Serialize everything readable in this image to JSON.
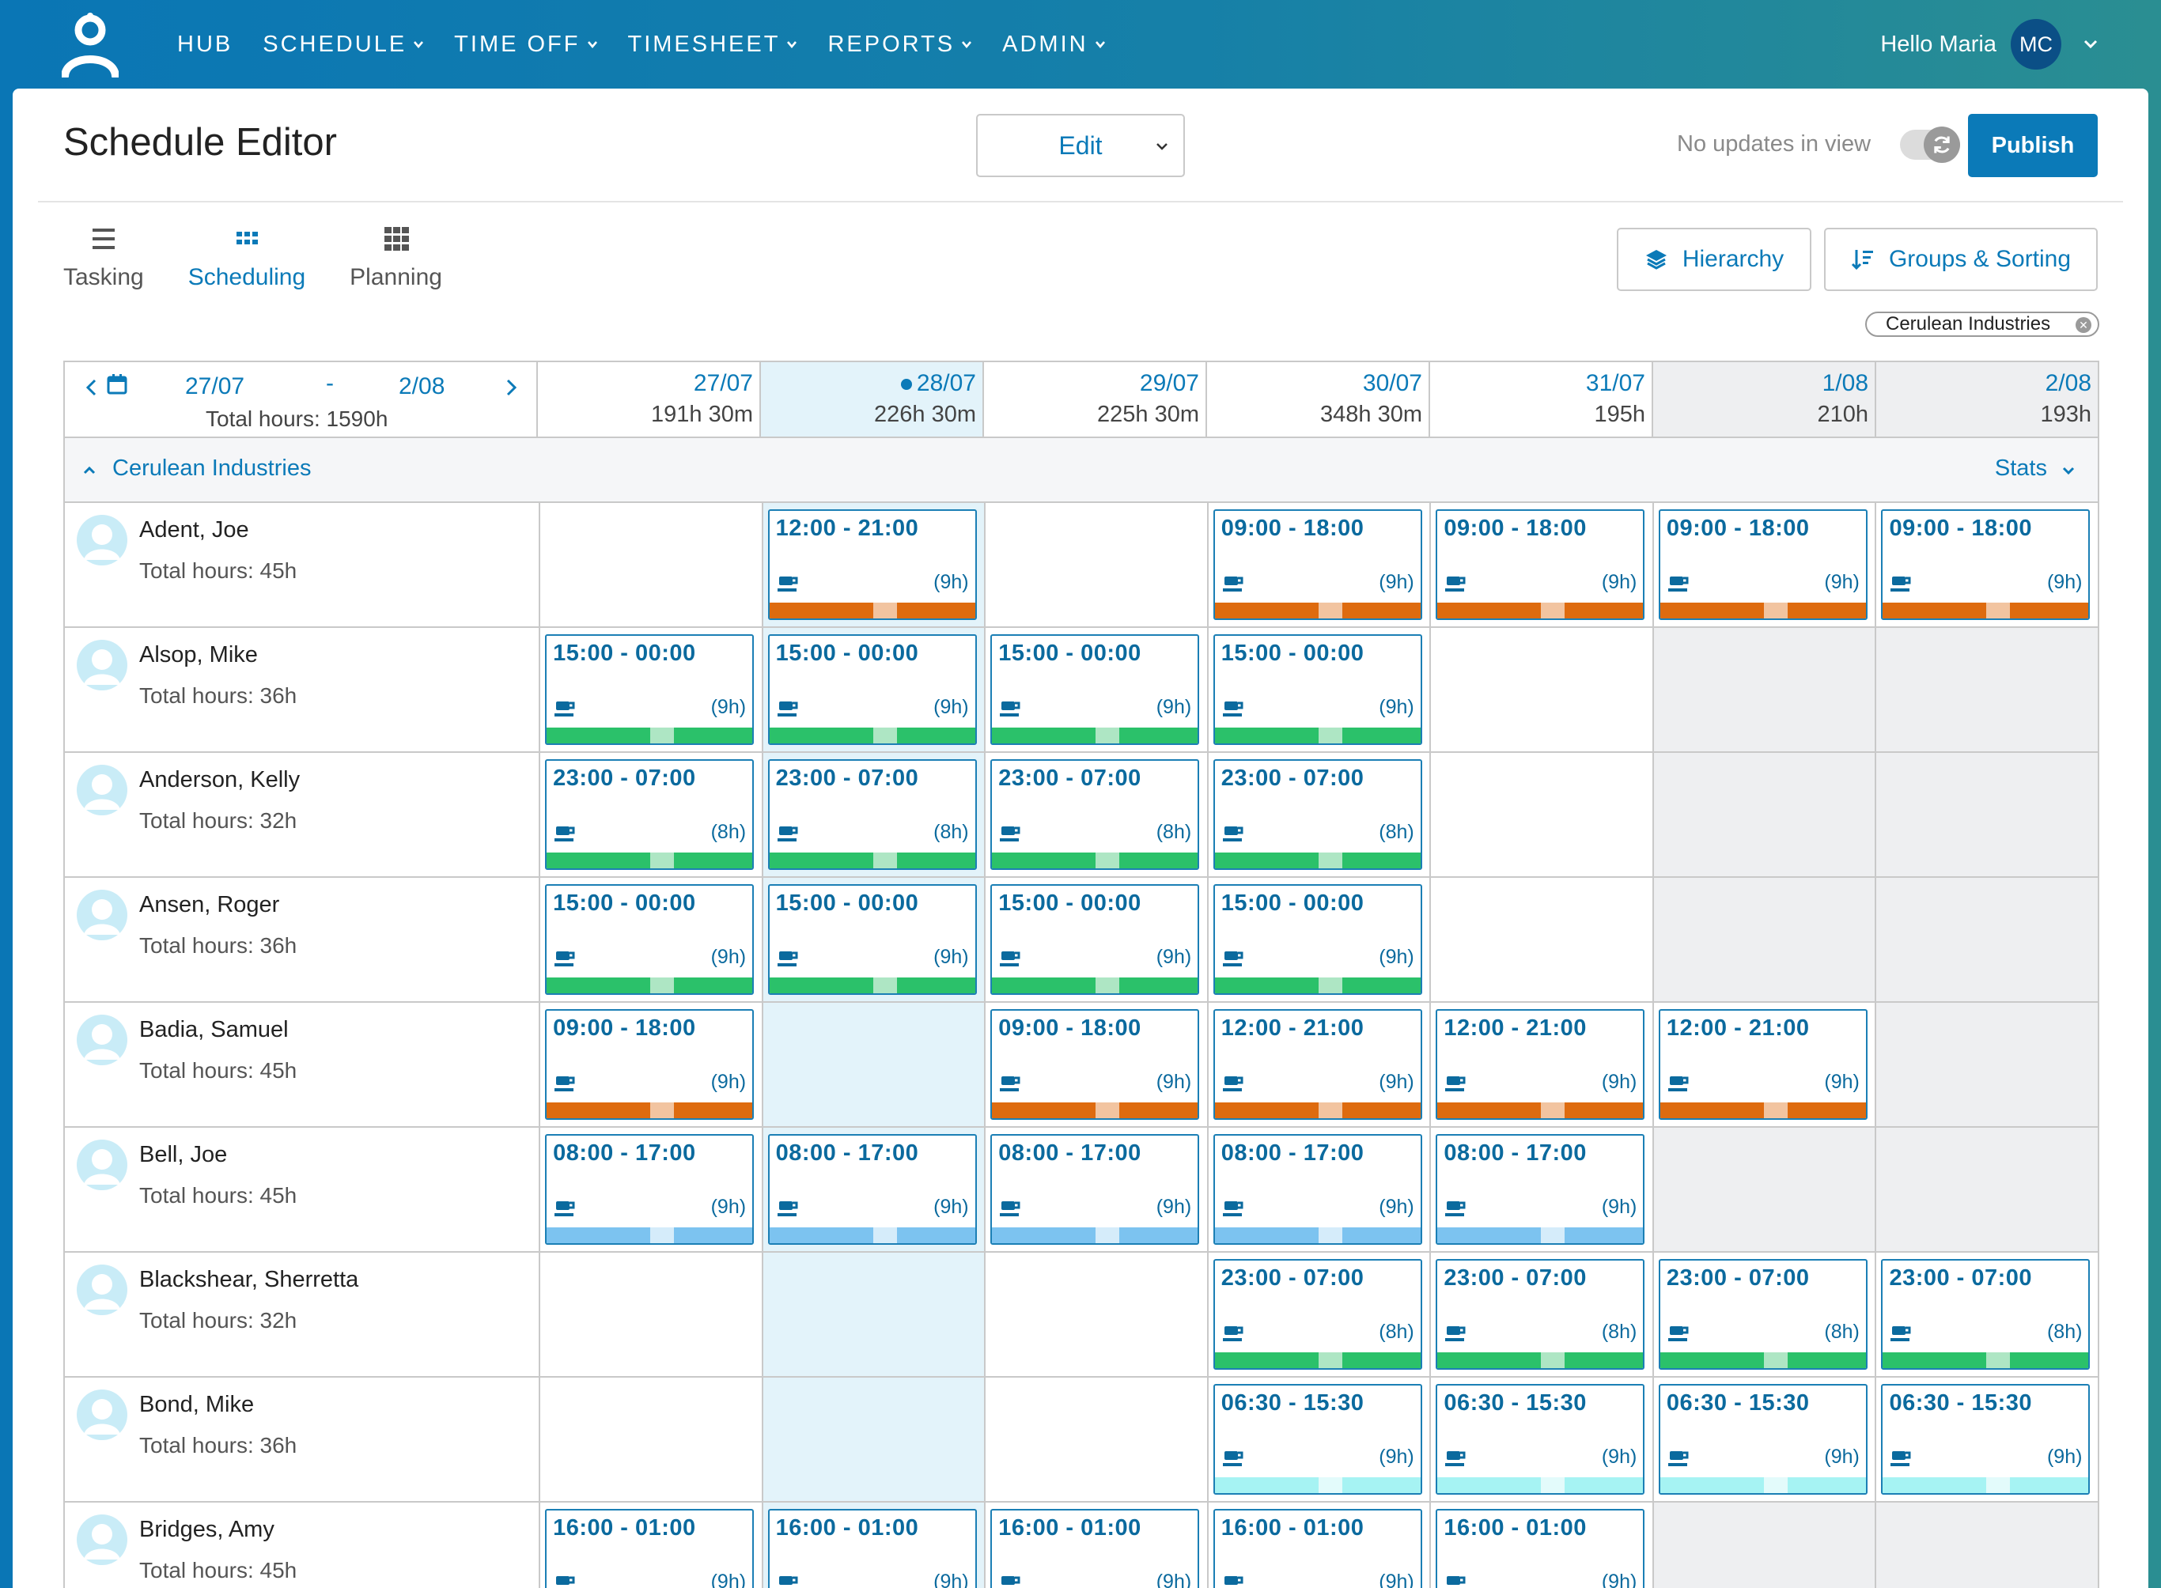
{
  "nav": {
    "items": [
      {
        "label": "HUB",
        "dropdown": false
      },
      {
        "label": "SCHEDULE",
        "dropdown": true
      },
      {
        "label": "TIME OFF",
        "dropdown": true
      },
      {
        "label": "TIMESHEET",
        "dropdown": true
      },
      {
        "label": "REPORTS",
        "dropdown": true
      },
      {
        "label": "ADMIN",
        "dropdown": true
      }
    ],
    "greeting": "Hello Maria",
    "initials": "MC"
  },
  "header": {
    "title": "Schedule Editor",
    "mode": "Edit",
    "updates_text": "No updates in view",
    "publish_label": "Publish"
  },
  "tabs": [
    {
      "label": "Tasking",
      "icon": "list-icon",
      "active": false
    },
    {
      "label": "Scheduling",
      "icon": "grid-small-icon",
      "active": true
    },
    {
      "label": "Planning",
      "icon": "grid-large-icon",
      "active": false
    }
  ],
  "tools": {
    "hierarchy_label": "Hierarchy",
    "groups_label": "Groups & Sorting",
    "filter_chip": "Cerulean Industries"
  },
  "range": {
    "from": "27/07",
    "dash": "-",
    "to": "2/08",
    "total": "Total hours: 1590h"
  },
  "days": [
    {
      "date": "27/07",
      "hours": "191h 30m",
      "today": false,
      "weekend": false
    },
    {
      "date": "28/07",
      "hours": "226h 30m",
      "today": true,
      "weekend": false
    },
    {
      "date": "29/07",
      "hours": "225h 30m",
      "today": false,
      "weekend": false
    },
    {
      "date": "30/07",
      "hours": "348h 30m",
      "today": false,
      "weekend": false
    },
    {
      "date": "31/07",
      "hours": "195h",
      "today": false,
      "weekend": false
    },
    {
      "date": "1/08",
      "hours": "210h",
      "today": false,
      "weekend": true
    },
    {
      "date": "2/08",
      "hours": "193h",
      "today": false,
      "weekend": true
    }
  ],
  "group": {
    "name": "Cerulean Industries",
    "stats_label": "Stats"
  },
  "colors": {
    "orange": "#de6b0f",
    "orange_break": "#f2c4a0",
    "green": "#2bc16a",
    "green_break": "#aee6c4",
    "blue": "#7cc3f0",
    "blue_break": "#d5ecfa",
    "cyan": "#a6f3f3",
    "cyan_break": "#e3fbfb",
    "accent": "#0b7ab8"
  },
  "employees": [
    {
      "name": "Adent, Joe",
      "total": "Total hours: 45h",
      "shifts": [
        null,
        {
          "time": "12:00 - 21:00",
          "dur": "(9h)",
          "color": "orange"
        },
        null,
        {
          "time": "09:00 - 18:00",
          "dur": "(9h)",
          "color": "orange"
        },
        {
          "time": "09:00 - 18:00",
          "dur": "(9h)",
          "color": "orange"
        },
        {
          "time": "09:00 - 18:00",
          "dur": "(9h)",
          "color": "orange"
        },
        {
          "time": "09:00 - 18:00",
          "dur": "(9h)",
          "color": "orange"
        }
      ]
    },
    {
      "name": "Alsop, Mike",
      "total": "Total hours: 36h",
      "shifts": [
        {
          "time": "15:00 - 00:00",
          "dur": "(9h)",
          "color": "green"
        },
        {
          "time": "15:00 - 00:00",
          "dur": "(9h)",
          "color": "green"
        },
        {
          "time": "15:00 - 00:00",
          "dur": "(9h)",
          "color": "green"
        },
        {
          "time": "15:00 - 00:00",
          "dur": "(9h)",
          "color": "green"
        },
        null,
        null,
        null
      ]
    },
    {
      "name": "Anderson, Kelly",
      "total": "Total hours: 32h",
      "shifts": [
        {
          "time": "23:00 - 07:00",
          "dur": "(8h)",
          "color": "green"
        },
        {
          "time": "23:00 - 07:00",
          "dur": "(8h)",
          "color": "green"
        },
        {
          "time": "23:00 - 07:00",
          "dur": "(8h)",
          "color": "green"
        },
        {
          "time": "23:00 - 07:00",
          "dur": "(8h)",
          "color": "green"
        },
        null,
        null,
        null
      ]
    },
    {
      "name": "Ansen, Roger",
      "total": "Total hours: 36h",
      "shifts": [
        {
          "time": "15:00 - 00:00",
          "dur": "(9h)",
          "color": "green"
        },
        {
          "time": "15:00 - 00:00",
          "dur": "(9h)",
          "color": "green"
        },
        {
          "time": "15:00 - 00:00",
          "dur": "(9h)",
          "color": "green"
        },
        {
          "time": "15:00 - 00:00",
          "dur": "(9h)",
          "color": "green"
        },
        null,
        null,
        null
      ]
    },
    {
      "name": "Badia, Samuel",
      "total": "Total hours: 45h",
      "shifts": [
        {
          "time": "09:00 - 18:00",
          "dur": "(9h)",
          "color": "orange"
        },
        null,
        {
          "time": "09:00 - 18:00",
          "dur": "(9h)",
          "color": "orange"
        },
        {
          "time": "12:00 - 21:00",
          "dur": "(9h)",
          "color": "orange"
        },
        {
          "time": "12:00 - 21:00",
          "dur": "(9h)",
          "color": "orange"
        },
        {
          "time": "12:00 - 21:00",
          "dur": "(9h)",
          "color": "orange"
        },
        null
      ]
    },
    {
      "name": "Bell, Joe",
      "total": "Total hours: 45h",
      "shifts": [
        {
          "time": "08:00 - 17:00",
          "dur": "(9h)",
          "color": "blue"
        },
        {
          "time": "08:00 - 17:00",
          "dur": "(9h)",
          "color": "blue"
        },
        {
          "time": "08:00 - 17:00",
          "dur": "(9h)",
          "color": "blue"
        },
        {
          "time": "08:00 - 17:00",
          "dur": "(9h)",
          "color": "blue"
        },
        {
          "time": "08:00 - 17:00",
          "dur": "(9h)",
          "color": "blue"
        },
        null,
        null
      ]
    },
    {
      "name": "Blackshear, Sherretta",
      "total": "Total hours: 32h",
      "shifts": [
        null,
        null,
        null,
        {
          "time": "23:00 - 07:00",
          "dur": "(8h)",
          "color": "green"
        },
        {
          "time": "23:00 - 07:00",
          "dur": "(8h)",
          "color": "green"
        },
        {
          "time": "23:00 - 07:00",
          "dur": "(8h)",
          "color": "green"
        },
        {
          "time": "23:00 - 07:00",
          "dur": "(8h)",
          "color": "green"
        }
      ]
    },
    {
      "name": "Bond, Mike",
      "total": "Total hours: 36h",
      "shifts": [
        null,
        null,
        null,
        {
          "time": "06:30 - 15:30",
          "dur": "(9h)",
          "color": "cyan"
        },
        {
          "time": "06:30 - 15:30",
          "dur": "(9h)",
          "color": "cyan"
        },
        {
          "time": "06:30 - 15:30",
          "dur": "(9h)",
          "color": "cyan"
        },
        {
          "time": "06:30 - 15:30",
          "dur": "(9h)",
          "color": "cyan"
        }
      ]
    },
    {
      "name": "Bridges, Amy",
      "total": "Total hours: 45h",
      "shifts": [
        {
          "time": "16:00 - 01:00",
          "dur": "(9h)",
          "color": "orange"
        },
        {
          "time": "16:00 - 01:00",
          "dur": "(9h)",
          "color": "orange"
        },
        {
          "time": "16:00 - 01:00",
          "dur": "(9h)",
          "color": "orange"
        },
        {
          "time": "16:00 - 01:00",
          "dur": "(9h)",
          "color": "orange"
        },
        {
          "time": "16:00 - 01:00",
          "dur": "(9h)",
          "color": "orange"
        },
        null,
        null
      ]
    }
  ]
}
